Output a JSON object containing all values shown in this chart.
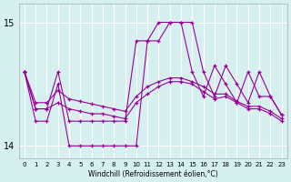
{
  "xlabel": "Windchill (Refroidissement éolien,°C)",
  "x": [
    0,
    1,
    2,
    3,
    4,
    5,
    6,
    7,
    8,
    9,
    10,
    11,
    12,
    13,
    14,
    15,
    16,
    17,
    18,
    19,
    20,
    21,
    22,
    23
  ],
  "y_main": [
    14.6,
    14.3,
    14.3,
    14.6,
    14.2,
    14.2,
    14.2,
    14.2,
    14.2,
    14.2,
    14.85,
    14.85,
    15.0,
    15.0,
    15.0,
    14.6,
    14.4,
    14.65,
    14.5,
    14.35,
    14.6,
    14.4,
    14.4,
    14.25
  ],
  "y_lower": [
    14.6,
    14.2,
    14.2,
    14.5,
    14.0,
    14.0,
    14.0,
    14.0,
    14.0,
    14.0,
    14.0,
    14.85,
    14.85,
    15.0,
    15.0,
    15.0,
    14.6,
    14.4,
    14.65,
    14.5,
    14.35,
    14.6,
    14.4,
    14.25
  ],
  "y_flat": [
    14.6,
    14.35,
    14.35,
    14.45,
    14.38,
    14.36,
    14.34,
    14.32,
    14.3,
    14.28,
    14.4,
    14.48,
    14.52,
    14.55,
    14.55,
    14.52,
    14.48,
    14.42,
    14.42,
    14.36,
    14.32,
    14.32,
    14.28,
    14.22
  ],
  "y_trend": [
    14.6,
    14.3,
    14.3,
    14.35,
    14.3,
    14.28,
    14.26,
    14.26,
    14.24,
    14.22,
    14.35,
    14.42,
    14.48,
    14.52,
    14.52,
    14.5,
    14.44,
    14.38,
    14.4,
    14.35,
    14.3,
    14.3,
    14.26,
    14.2
  ],
  "line_color": "#990099",
  "bg_color": "#d6f0f0",
  "grid_color": "#ffffff",
  "ylim": [
    13.9,
    15.15
  ],
  "xlim": [
    -0.5,
    23.5
  ],
  "yticks": [
    14,
    15
  ],
  "xticks": [
    0,
    1,
    2,
    3,
    4,
    5,
    6,
    7,
    8,
    9,
    10,
    11,
    12,
    13,
    14,
    15,
    16,
    17,
    18,
    19,
    20,
    21,
    22,
    23
  ]
}
